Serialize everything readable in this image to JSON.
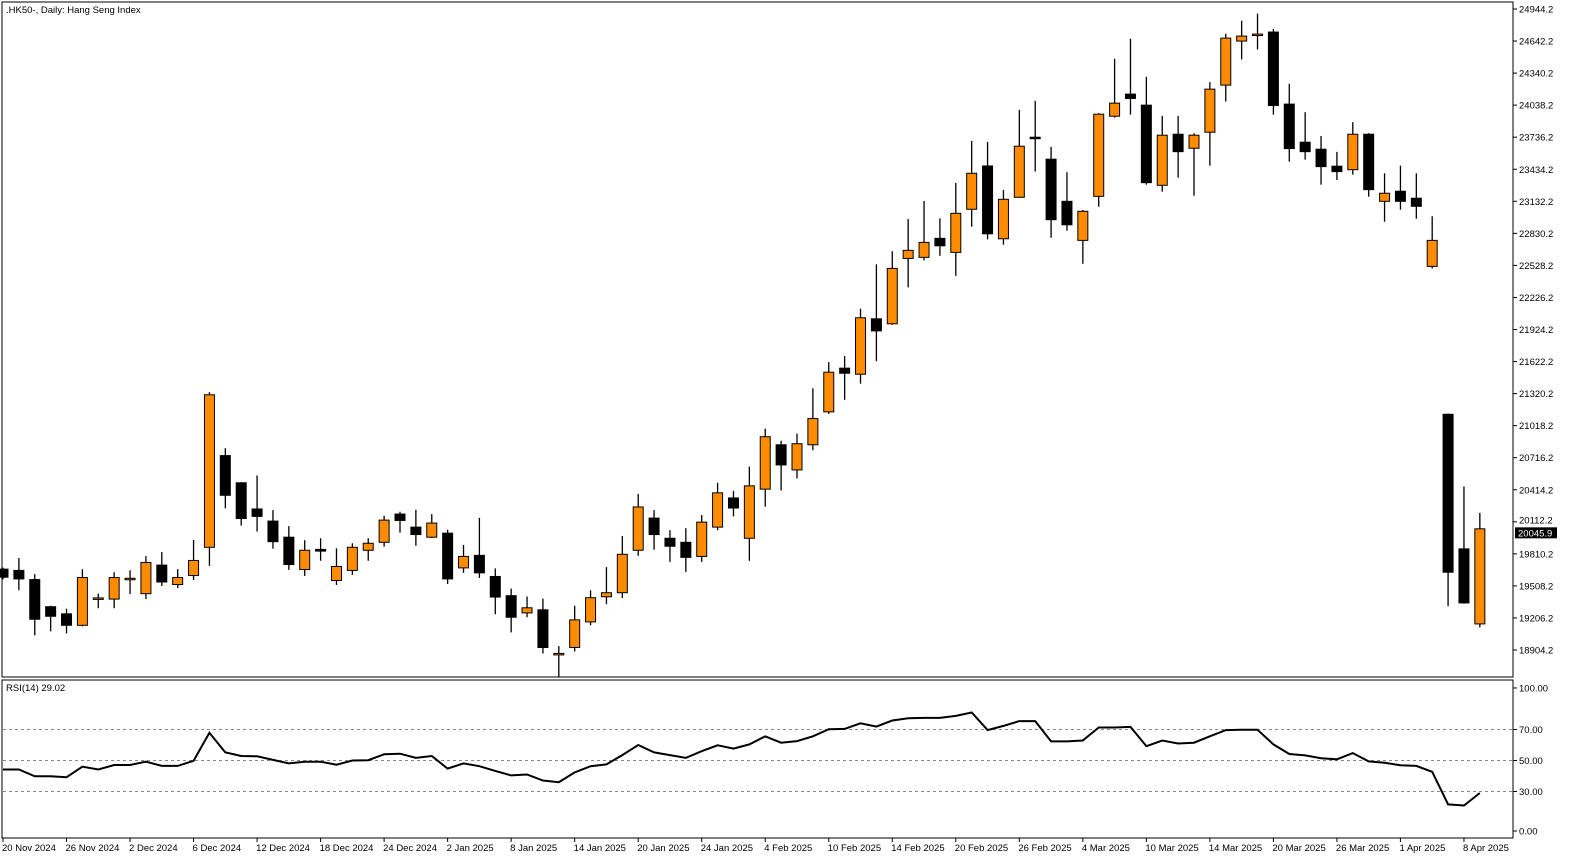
{
  "window": {
    "title": ".HK50-, Daily:  Hang Seng Index",
    "indicator_label": "RSI(14) 29.02"
  },
  "colors": {
    "bull_candle": "#ff8c00",
    "bear_candle": "#000000",
    "outline": "#000000",
    "background": "#ffffff",
    "level_line": "#888888"
  },
  "chart_data": [
    {
      "type": "candlestick",
      "title": ".HK50-, Daily:  Hang Seng Index",
      "ylim": [
        18904.2,
        24944.2
      ],
      "y_ticks": [
        "24944.2",
        "24642.2",
        "24340.2",
        "24038.2",
        "23736.2",
        "23434.2",
        "23132.2",
        "22830.2",
        "22528.2",
        "22226.2",
        "21924.2",
        "21622.2",
        "21320.2",
        "21018.2",
        "20716.2",
        "20414.2",
        "20112.2",
        "19810.2",
        "19508.2",
        "19206.2",
        "18904.2"
      ],
      "current_price": "20045.9",
      "grid": false,
      "x_tick_labels": [
        {
          "index": 0,
          "label": "20 Nov 2024"
        },
        {
          "index": 4,
          "label": "26 Nov 2024"
        },
        {
          "index": 8,
          "label": "2 Dec 2024"
        },
        {
          "index": 12,
          "label": "6 Dec 2024"
        },
        {
          "index": 16,
          "label": "12 Dec 2024"
        },
        {
          "index": 20,
          "label": "18 Dec 2024"
        },
        {
          "index": 24,
          "label": "24 Dec 2024"
        },
        {
          "index": 28,
          "label": "2 Jan 2025"
        },
        {
          "index": 32,
          "label": "8 Jan 2025"
        },
        {
          "index": 36,
          "label": "14 Jan 2025"
        },
        {
          "index": 40,
          "label": "20 Jan 2025"
        },
        {
          "index": 44,
          "label": "24 Jan 2025"
        },
        {
          "index": 48,
          "label": "4 Feb 2025"
        },
        {
          "index": 52,
          "label": "10 Feb 2025"
        },
        {
          "index": 56,
          "label": "14 Feb 2025"
        },
        {
          "index": 60,
          "label": "20 Feb 2025"
        },
        {
          "index": 64,
          "label": "26 Feb 2025"
        },
        {
          "index": 68,
          "label": "4 Mar 2025"
        },
        {
          "index": 72,
          "label": "10 Mar 2025"
        },
        {
          "index": 76,
          "label": "14 Mar 2025"
        },
        {
          "index": 80,
          "label": "20 Mar 2025"
        },
        {
          "index": 84,
          "label": "26 Mar 2025"
        },
        {
          "index": 88,
          "label": "1 Apr 2025"
        },
        {
          "index": 92,
          "label": "8 Apr 2025"
        }
      ],
      "ohlc_fields": [
        "open",
        "high",
        "low",
        "close"
      ],
      "candles": [
        [
          19666,
          19680,
          19570,
          19590
        ],
        [
          19654,
          19771,
          19467,
          19574
        ],
        [
          19568,
          19619,
          19042,
          19194
        ],
        [
          19312,
          19321,
          19080,
          19222
        ],
        [
          19245,
          19293,
          19061,
          19137
        ],
        [
          19137,
          19666,
          19127,
          19587
        ],
        [
          19385,
          19435,
          19298,
          19395
        ],
        [
          19384,
          19637,
          19298,
          19587
        ],
        [
          19575,
          19656,
          19431,
          19580
        ],
        [
          19435,
          19789,
          19384,
          19729
        ],
        [
          19704,
          19827,
          19507,
          19545
        ],
        [
          19521,
          19666,
          19488,
          19587
        ],
        [
          19606,
          19941,
          19564,
          19748
        ],
        [
          19872,
          21334,
          19697,
          21309
        ],
        [
          20736,
          20806,
          20239,
          20362
        ],
        [
          20480,
          20485,
          20077,
          20143
        ],
        [
          20233,
          20549,
          20020,
          20163
        ],
        [
          20119,
          20223,
          19859,
          19925
        ],
        [
          19967,
          20071,
          19659,
          19710
        ],
        [
          19663,
          19939,
          19602,
          19844
        ],
        [
          19852,
          19957,
          19745,
          19836
        ],
        [
          19559,
          19862,
          19517,
          19691
        ],
        [
          19654,
          19910,
          19612,
          19872
        ],
        [
          19844,
          19957,
          19745,
          19910
        ],
        [
          19919,
          20169,
          19878,
          20128
        ],
        [
          20185,
          20207,
          20010,
          20125
        ],
        [
          20062,
          20226,
          19887,
          19992
        ],
        [
          19967,
          20185,
          19960,
          20100
        ],
        [
          20005,
          20036,
          19526,
          19574
        ],
        [
          19678,
          19894,
          19631,
          19786
        ],
        [
          19796,
          20150,
          19583,
          19631
        ],
        [
          19597,
          19673,
          19241,
          19403
        ],
        [
          19416,
          19483,
          19070,
          19213
        ],
        [
          19254,
          19409,
          19213,
          19302
        ],
        [
          19283,
          19388,
          18871,
          18928
        ],
        [
          18862,
          18941,
          18652,
          18872
        ],
        [
          18928,
          19321,
          18890,
          19188
        ],
        [
          19169,
          19466,
          19137,
          19397
        ],
        [
          19406,
          19685,
          19336,
          19444
        ],
        [
          19444,
          19979,
          19393,
          19806
        ],
        [
          19844,
          20375,
          19792,
          20252
        ],
        [
          20147,
          20223,
          19849,
          19992
        ],
        [
          19957,
          20033,
          19735,
          19882
        ],
        [
          19919,
          20052,
          19640,
          19777
        ],
        [
          19786,
          20176,
          19735,
          20109
        ],
        [
          20062,
          20480,
          20033,
          20385
        ],
        [
          20337,
          20404,
          20163,
          20242
        ],
        [
          19957,
          20632,
          19745,
          20451
        ],
        [
          20420,
          20990,
          20255,
          20914
        ],
        [
          20838,
          20876,
          20407,
          20648
        ],
        [
          20601,
          20943,
          20521,
          20848
        ],
        [
          20838,
          21370,
          20787,
          21085
        ],
        [
          21148,
          21617,
          21129,
          21522
        ],
        [
          21560,
          21674,
          21262,
          21512
        ],
        [
          21503,
          22120,
          21414,
          22035
        ],
        [
          22025,
          22538,
          21626,
          21911
        ],
        [
          21978,
          22662,
          21968,
          22500
        ],
        [
          22594,
          22965,
          22321,
          22670
        ],
        [
          22604,
          23135,
          22575,
          22745
        ],
        [
          22783,
          22972,
          22619,
          22713
        ],
        [
          22651,
          23305,
          22430,
          23019
        ],
        [
          23057,
          23701,
          22892,
          23396
        ],
        [
          23465,
          23692,
          22774,
          22826
        ],
        [
          22779,
          23239,
          22723,
          23151
        ],
        [
          23170,
          23994,
          23165,
          23651
        ],
        [
          23736,
          24079,
          23412,
          23730
        ],
        [
          23529,
          23645,
          22789,
          22959
        ],
        [
          23132,
          23406,
          22855,
          22911
        ],
        [
          22764,
          23050,
          22543,
          23038
        ],
        [
          23179,
          23963,
          23081,
          23953
        ],
        [
          23934,
          24475,
          23921,
          24057
        ],
        [
          24142,
          24664,
          23949,
          24101
        ],
        [
          24038,
          24305,
          23289,
          23308
        ],
        [
          23283,
          23937,
          23223,
          23755
        ],
        [
          23764,
          23937,
          23355,
          23600
        ],
        [
          23632,
          23774,
          23185,
          23755
        ],
        [
          23783,
          24255,
          23468,
          24189
        ],
        [
          24227,
          24711,
          24072,
          24670
        ],
        [
          24642,
          24834,
          24469,
          24689
        ],
        [
          24700,
          24900,
          24563,
          24708
        ],
        [
          24727,
          24755,
          23949,
          24035
        ],
        [
          24048,
          24239,
          23506,
          23629
        ],
        [
          23689,
          23972,
          23525,
          23600
        ],
        [
          23623,
          23748,
          23289,
          23459
        ],
        [
          23463,
          23598,
          23333,
          23412
        ],
        [
          23430,
          23878,
          23383,
          23764
        ],
        [
          23764,
          23774,
          23176,
          23242
        ],
        [
          23132,
          23396,
          22940,
          23208
        ],
        [
          23227,
          23468,
          23053,
          23132
        ],
        [
          23161,
          23396,
          22968,
          23085
        ],
        [
          22519,
          22991,
          22500,
          22764
        ],
        [
          21125,
          21132,
          19316,
          19637
        ],
        [
          19857,
          20445,
          19340,
          19348
        ],
        [
          19150,
          20197,
          19117,
          20045.9
        ]
      ]
    },
    {
      "type": "line",
      "title": "RSI(14) 29.02",
      "ylim": [
        0,
        100
      ],
      "y_ticks": [
        "100.00",
        "70.00",
        "50.00",
        "30.00",
        "0.00"
      ],
      "levels": [
        70,
        50,
        30
      ],
      "grid": false,
      "values": [
        44.2,
        44.2,
        39.8,
        39.8,
        39.2,
        46.0,
        44.2,
        47.1,
        47.1,
        49.2,
        46.5,
        46.5,
        49.8,
        67.9,
        55.2,
        52.9,
        52.7,
        50.4,
        48.1,
        49.2,
        49.2,
        47.3,
        50.0,
        50.2,
        54.0,
        54.4,
        51.7,
        52.9,
        44.8,
        48.1,
        46.3,
        43.3,
        40.4,
        41.0,
        37.1,
        36.0,
        42.3,
        46.3,
        47.5,
        53.5,
        60.0,
        55.2,
        53.5,
        51.7,
        56.0,
        59.8,
        57.7,
        60.4,
        65.6,
        61.5,
        62.5,
        65.6,
        70.2,
        70.4,
        74.0,
        71.9,
        75.8,
        77.3,
        77.5,
        77.5,
        78.8,
        81.0,
        69.6,
        72.3,
        75.4,
        75.4,
        62.3,
        62.3,
        62.9,
        71.3,
        71.3,
        71.7,
        59.2,
        62.9,
        61.0,
        61.5,
        65.6,
        69.6,
        69.8,
        69.8,
        60.4,
        54.2,
        53.3,
        51.5,
        50.8,
        54.8,
        49.4,
        48.5,
        46.9,
        46.5,
        42.7,
        21.7,
        21.0,
        29.02
      ]
    }
  ]
}
